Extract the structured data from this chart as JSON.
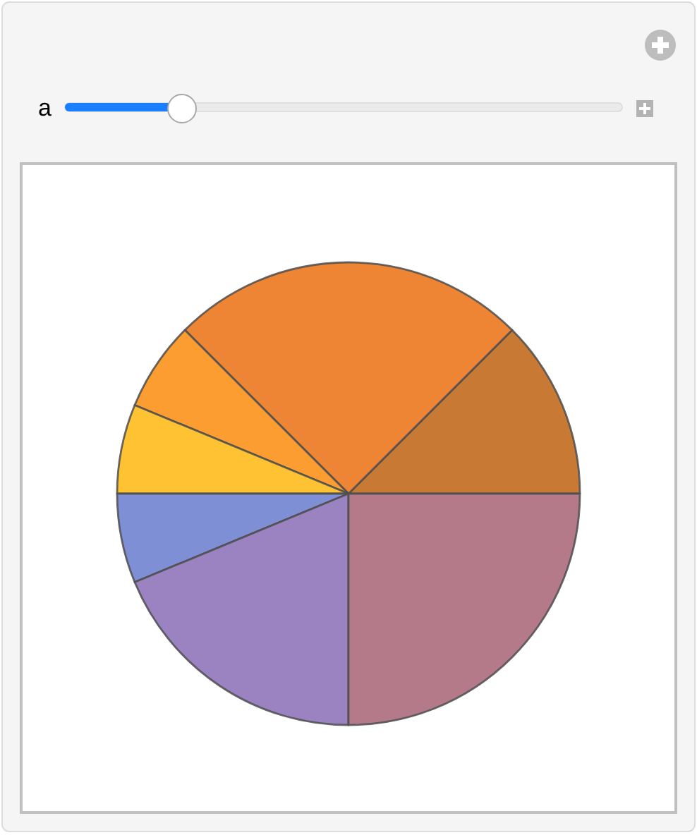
{
  "chart_data": {
    "type": "pie",
    "categories": [
      null,
      null,
      null,
      null,
      null,
      null,
      null
    ],
    "values": [
      12.5,
      25,
      6.25,
      6.25,
      6.25,
      18.75,
      25
    ],
    "colors": [
      "#c87a35",
      "#ed8535",
      "#fb9d31",
      "#ffc232",
      "#7f8fd6",
      "#9b82c0",
      "#b47a8a"
    ],
    "annotations": [
      "a"
    ]
  }
}
